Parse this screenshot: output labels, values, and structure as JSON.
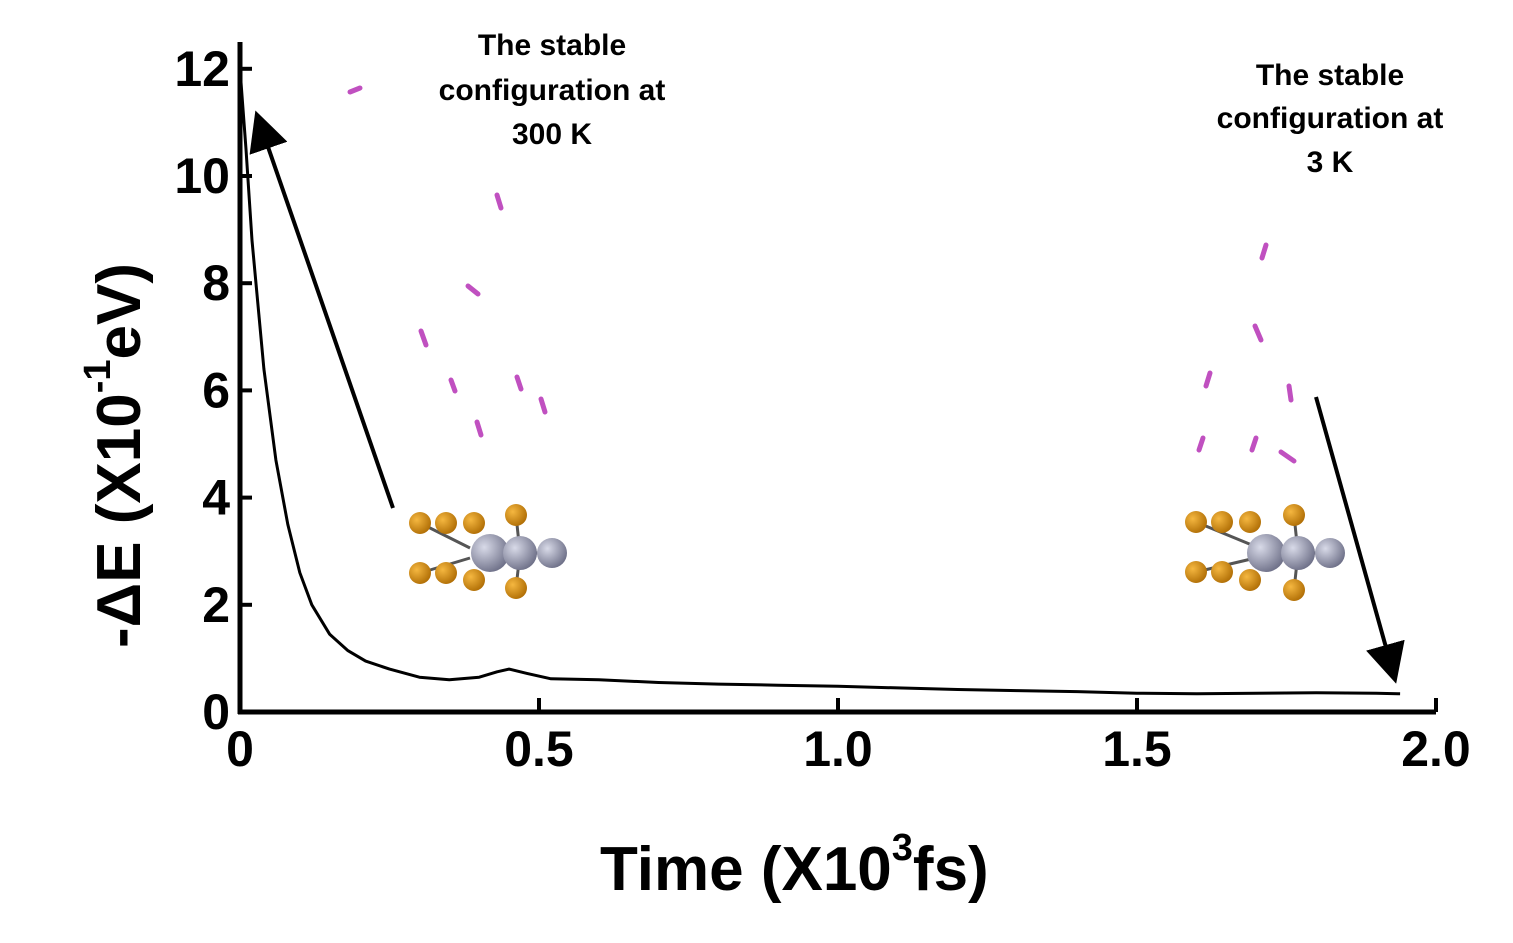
{
  "chart_data": {
    "type": "line",
    "xlabel": {
      "prefix": "Time (X10",
      "sup": "3",
      "suffix": "fs)"
    },
    "ylabel": {
      "prefix": "-ΔE (X10",
      "sup": "-1",
      "suffix": "eV)"
    },
    "xlim": [
      0,
      2.0
    ],
    "ylim": [
      0,
      12.5
    ],
    "xticks": [
      "0",
      "0.5",
      "1.0",
      "1.5",
      "2.0"
    ],
    "xtick_values": [
      0,
      0.5,
      1.0,
      1.5,
      2.0
    ],
    "yticks": [
      "0",
      "2",
      "4",
      "6",
      "8",
      "10",
      "12"
    ],
    "ytick_values": [
      0,
      2,
      4,
      6,
      8,
      10,
      12
    ],
    "grid": false,
    "series": [
      {
        "x": [
          0,
          0.01,
          0.02,
          0.04,
          0.06,
          0.08,
          0.1,
          0.12,
          0.15,
          0.18,
          0.21,
          0.25,
          0.3,
          0.35,
          0.4,
          0.43,
          0.45,
          0.48,
          0.52,
          0.6,
          0.7,
          0.8,
          0.9,
          1.0,
          1.1,
          1.2,
          1.3,
          1.4,
          1.5,
          1.6,
          1.7,
          1.8,
          1.9,
          1.94
        ],
        "y": [
          12.0,
          10.5,
          8.8,
          6.4,
          4.7,
          3.5,
          2.6,
          2.0,
          1.45,
          1.15,
          0.95,
          0.8,
          0.65,
          0.6,
          0.65,
          0.75,
          0.8,
          0.72,
          0.62,
          0.6,
          0.55,
          0.52,
          0.5,
          0.48,
          0.45,
          0.42,
          0.4,
          0.38,
          0.35,
          0.34,
          0.35,
          0.36,
          0.35,
          0.34
        ],
        "color": "#000000"
      }
    ],
    "annotations": [
      {
        "lines": [
          "The stable",
          "configuration at",
          "300 K"
        ]
      },
      {
        "lines": [
          "The stable",
          "configuration at",
          "3 K"
        ]
      }
    ],
    "colors": {
      "sulfur": "#D4890A",
      "metal": "#9A9CB0",
      "hydrogen": "#C050C0"
    }
  }
}
